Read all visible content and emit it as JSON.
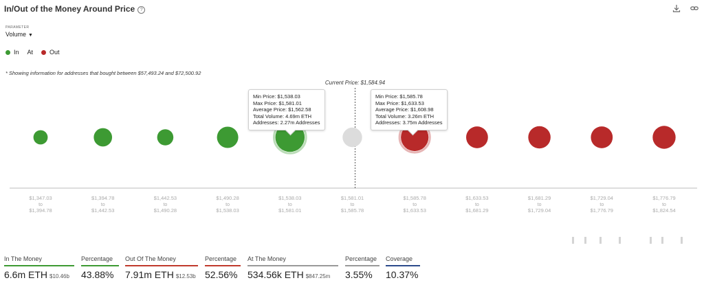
{
  "header": {
    "title": "In/Out of the Money Around Price",
    "help_glyph": "?"
  },
  "parameter": {
    "label": "PARAMETER",
    "value": "Volume"
  },
  "legend": [
    {
      "label": "In",
      "color": "#3d9a33"
    },
    {
      "label": "At",
      "color": "#d0d0d0"
    },
    {
      "label": "Out",
      "color": "#b82a2a"
    }
  ],
  "note": "* Showing information for addresses that bought between $57,493.24 and $72,500.92",
  "chart_data": {
    "type": "scatter",
    "current_price_label": "Current Price: $1,584.94",
    "current_price_index": 5,
    "bins": [
      {
        "from": "$1,347.03",
        "to": "$1,394.78",
        "status": "in",
        "size": 0.45
      },
      {
        "from": "$1,394.78",
        "to": "$1,442.53",
        "status": "in",
        "size": 0.74
      },
      {
        "from": "$1,442.53",
        "to": "$1,490.28",
        "status": "in",
        "size": 0.58
      },
      {
        "from": "$1,490.28",
        "to": "$1,538.03",
        "status": "in",
        "size": 1.0
      },
      {
        "from": "$1,538.03",
        "to": "$1,581.01",
        "status": "in",
        "size": 1.89
      },
      {
        "from": "$1,581.01",
        "to": "$1,585.78",
        "status": "at",
        "size": 0.84
      },
      {
        "from": "$1,585.78",
        "to": "$1,633.53",
        "status": "out",
        "size": 1.68
      },
      {
        "from": "$1,633.53",
        "to": "$1,681.29",
        "status": "out",
        "size": 1.05
      },
      {
        "from": "$1,681.29",
        "to": "$1,729.04",
        "status": "out",
        "size": 1.1
      },
      {
        "from": "$1,729.04",
        "to": "$1,776.79",
        "status": "out",
        "size": 1.05
      },
      {
        "from": "$1,776.79",
        "to": "$1,824.54",
        "status": "out",
        "size": 1.16
      }
    ],
    "tooltips": [
      {
        "bin": 4,
        "rows": [
          "Min Price: $1,538.03",
          "Max Price: $1,581.01",
          "Average Price: $1,562.58",
          "Total Volume: 4.69m ETH",
          "Addresses: 2.27m Addresses"
        ]
      },
      {
        "bin": 6,
        "rows": [
          "Min Price: $1,585.78",
          "Max Price: $1,633.53",
          "Average Price: $1,608.98",
          "Total Volume: 3.26m ETH",
          "Addresses: 3.75m Addresses"
        ]
      }
    ],
    "to_word": "to",
    "colors": {
      "in": "#3d9a33",
      "at": "#dcdcdc",
      "out": "#b82a2a"
    }
  },
  "stats": {
    "in": {
      "label": "In The Money",
      "value": "6.6m ETH",
      "sub": "$10.46b",
      "color": "#3d9a33"
    },
    "in_pct": {
      "label": "Percentage",
      "value": "43.88%",
      "color": "#3d9a33"
    },
    "out": {
      "label": "Out Of The Money",
      "value": "7.91m ETH",
      "sub": "$12.53b",
      "color": "#c0392b"
    },
    "out_pct": {
      "label": "Percentage",
      "value": "52.56%",
      "color": "#c0392b"
    },
    "at": {
      "label": "At The Money",
      "value": "534.56k ETH",
      "sub": "$847.25m",
      "color": "#999999"
    },
    "at_pct": {
      "label": "Percentage",
      "value": "3.55%",
      "color": "#999999"
    },
    "coverage": {
      "label": "Coverage",
      "value": "10.37%",
      "color": "#2b4a8b"
    }
  }
}
